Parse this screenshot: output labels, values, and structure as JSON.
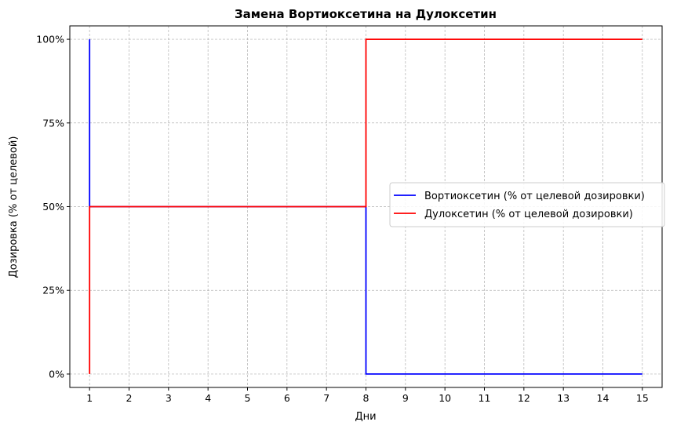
{
  "chart_data": {
    "type": "line",
    "title": "Замена Вортиоксетина на Дулоксетин",
    "xlabel": "Дни",
    "ylabel": "Дозировка (% от целевой)",
    "xlim": [
      0.5,
      15.5
    ],
    "ylim": [
      -4,
      104
    ],
    "xticks": [
      1,
      2,
      3,
      4,
      5,
      6,
      7,
      8,
      9,
      10,
      11,
      12,
      13,
      14,
      15
    ],
    "yticks": [
      0,
      25,
      50,
      75,
      100
    ],
    "ytick_labels": [
      "0%",
      "25%",
      "50%",
      "75%",
      "100%"
    ],
    "grid": true,
    "legend_position": "center-right",
    "series": [
      {
        "name": "Вортиоксетин (% от целевой дозировки)",
        "color": "#0000ff",
        "x": [
          1,
          1,
          8,
          8,
          15
        ],
        "y": [
          100,
          50,
          50,
          0,
          0
        ]
      },
      {
        "name": "Дулоксетин (% от целевой дозировки)",
        "color": "#ff0000",
        "x": [
          1,
          1,
          8,
          8,
          15
        ],
        "y": [
          0,
          50,
          50,
          100,
          100
        ]
      }
    ]
  }
}
